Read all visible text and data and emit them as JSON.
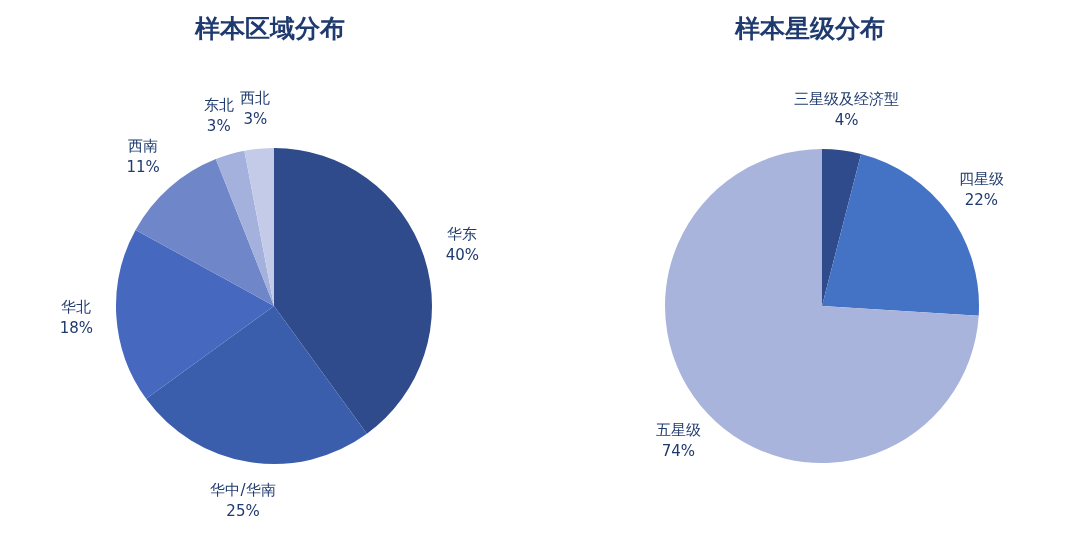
{
  "chart_data": [
    {
      "type": "pie",
      "title": "样本区域分布",
      "categories": [
        "华东",
        "华中/华南",
        "华北",
        "西南",
        "东北",
        "西北"
      ],
      "values": [
        40,
        25,
        18,
        11,
        3,
        3
      ],
      "colors": [
        "#2f4b8c",
        "#3a5eab",
        "#4669bf",
        "#6f86c9",
        "#a3b1dc",
        "#c3cbe9"
      ],
      "value_labels": [
        "40%",
        "25%",
        "18%",
        "11%",
        "3%",
        "3%"
      ]
    },
    {
      "type": "pie",
      "title": "样本星级分布",
      "categories": [
        "三星级及经济型",
        "四星级",
        "五星级"
      ],
      "values": [
        4,
        22,
        74
      ],
      "colors": [
        "#2f4b8c",
        "#4472c4",
        "#a9b4dc"
      ],
      "value_labels": [
        "4%",
        "22%",
        "74%"
      ]
    }
  ]
}
